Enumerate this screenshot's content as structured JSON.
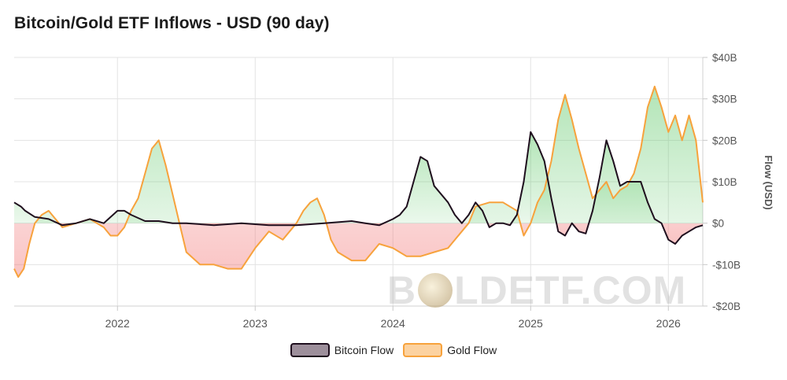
{
  "title": "Bitcoin/Gold ETF Inflows - USD (90 day)",
  "watermark": {
    "left": "B",
    "right": "LDETF.COM"
  },
  "legend": [
    {
      "label": "Bitcoin Flow",
      "color": "#1f0f1e"
    },
    {
      "label": "Gold Flow",
      "color": "#f7a23c"
    }
  ],
  "chart_data": {
    "type": "line",
    "title": "Bitcoin/Gold ETF Inflows - USD (90 day)",
    "ylabel": "Flow (USD)",
    "ylim": [
      -20,
      40
    ],
    "yunit": "B USD",
    "yticks": [
      40,
      30,
      20,
      10,
      0,
      -10,
      -20
    ],
    "ytick_labels": [
      "$40B",
      "$30B",
      "$20B",
      "$10B",
      "$0",
      "-$10B",
      "-$20B"
    ],
    "xticks": [
      2022,
      2023,
      2024,
      2025,
      2026
    ],
    "xlim": [
      2021.25,
      2026.25
    ],
    "grid": true,
    "legend_position": "bottom",
    "colors": {
      "bitcoin": "#1f0f1e",
      "gold": "#f7a23c",
      "positive_fill": "#54c45e",
      "negative_fill": "#f06a6a"
    },
    "series": [
      {
        "name": "Bitcoin Flow",
        "x": [
          2021.25,
          2021.3,
          2021.33,
          2021.4,
          2021.5,
          2021.6,
          2021.7,
          2021.8,
          2021.9,
          2022.0,
          2022.05,
          2022.1,
          2022.2,
          2022.3,
          2022.4,
          2022.5,
          2022.7,
          2022.9,
          2023.1,
          2023.3,
          2023.5,
          2023.7,
          2023.8,
          2023.9,
          2024.0,
          2024.05,
          2024.1,
          2024.15,
          2024.2,
          2024.25,
          2024.3,
          2024.4,
          2024.45,
          2024.5,
          2024.55,
          2024.6,
          2024.65,
          2024.7,
          2024.75,
          2024.8,
          2024.85,
          2024.9,
          2024.95,
          2025.0,
          2025.05,
          2025.1,
          2025.15,
          2025.2,
          2025.25,
          2025.3,
          2025.35,
          2025.4,
          2025.45,
          2025.5,
          2025.55,
          2025.6,
          2025.65,
          2025.7,
          2025.8,
          2025.85,
          2025.9,
          2025.95,
          2026.0,
          2026.05,
          2026.1,
          2026.15,
          2026.2,
          2026.25
        ],
        "values": [
          5,
          4,
          3,
          1.5,
          1,
          -0.5,
          0,
          1,
          0,
          3,
          3,
          2,
          0.5,
          0.5,
          0,
          0,
          -0.5,
          0,
          -0.5,
          -0.5,
          0,
          0.5,
          0,
          -0.5,
          1,
          2,
          4,
          10,
          16,
          15,
          9,
          5,
          2,
          0,
          2,
          5,
          3,
          -1,
          0,
          0,
          -0.5,
          2,
          10,
          22,
          19,
          15,
          6,
          -2,
          -3,
          0,
          -2,
          -2.5,
          3,
          11,
          20,
          15,
          9,
          10,
          10,
          5,
          1,
          0,
          -4,
          -5,
          -3,
          -2,
          -1,
          -0.5
        ]
      },
      {
        "name": "Gold Flow",
        "x": [
          2021.25,
          2021.28,
          2021.32,
          2021.36,
          2021.4,
          2021.45,
          2021.5,
          2021.55,
          2021.6,
          2021.7,
          2021.8,
          2021.9,
          2021.95,
          2022.0,
          2022.05,
          2022.1,
          2022.15,
          2022.2,
          2022.25,
          2022.3,
          2022.35,
          2022.4,
          2022.45,
          2022.5,
          2022.6,
          2022.7,
          2022.8,
          2022.9,
          2023.0,
          2023.1,
          2023.2,
          2023.3,
          2023.35,
          2023.4,
          2023.45,
          2023.5,
          2023.55,
          2023.6,
          2023.7,
          2023.8,
          2023.9,
          2024.0,
          2024.1,
          2024.2,
          2024.3,
          2024.4,
          2024.45,
          2024.5,
          2024.55,
          2024.6,
          2024.7,
          2024.8,
          2024.9,
          2024.95,
          2025.0,
          2025.05,
          2025.1,
          2025.15,
          2025.2,
          2025.25,
          2025.3,
          2025.35,
          2025.4,
          2025.45,
          2025.5,
          2025.55,
          2025.6,
          2025.65,
          2025.7,
          2025.75,
          2025.8,
          2025.85,
          2025.9,
          2025.95,
          2026.0,
          2026.05,
          2026.1,
          2026.15,
          2026.2,
          2026.25
        ],
        "values": [
          -11,
          -13,
          -11,
          -5,
          0,
          2,
          3,
          1,
          -1,
          0,
          1,
          -1,
          -3,
          -3,
          -1,
          3,
          6,
          12,
          18,
          20,
          14,
          7,
          0,
          -7,
          -10,
          -10,
          -11,
          -11,
          -6,
          -2,
          -4,
          0,
          3,
          5,
          6,
          2,
          -4,
          -7,
          -9,
          -9,
          -5,
          -6,
          -8,
          -8,
          -7,
          -6,
          -4,
          -2,
          0,
          4,
          5,
          5,
          3,
          -3,
          0,
          5,
          8,
          15,
          25,
          31,
          25,
          18,
          12,
          6,
          8,
          10,
          6,
          8,
          9,
          12,
          18,
          28,
          33,
          28,
          22,
          26,
          20,
          26,
          20,
          5
        ]
      }
    ]
  }
}
